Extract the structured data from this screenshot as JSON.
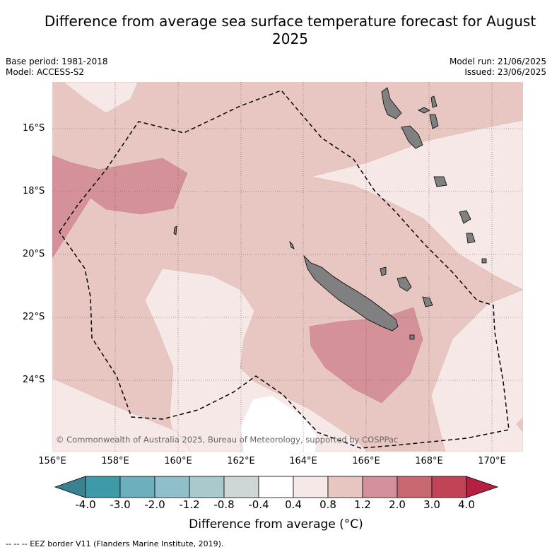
{
  "title": "Difference from average sea surface temperature forecast for August 2025",
  "base_period": "Base period: 1981-2018",
  "model": "Model: ACCESS-S2",
  "model_run": "Model run: 21/06/2025",
  "issued": "Issued: 23/06/2025",
  "copyright": "© Commonwealth of Australia 2025, Bureau of Meteorology, supported by COSPPac",
  "lat_ticks": [
    "16°S",
    "18°S",
    "20°S",
    "22°S",
    "24°S"
  ],
  "lon_ticks": [
    "156°E",
    "158°E",
    "160°E",
    "162°E",
    "164°E",
    "166°E",
    "168°E",
    "170°E"
  ],
  "colorbar": {
    "ticks": [
      "-4.0",
      "-3.0",
      "-2.0",
      "-1.2",
      "-0.8",
      "-0.4",
      "0.4",
      "0.8",
      "1.2",
      "2.0",
      "3.0",
      "4.0"
    ],
    "colors": [
      "#3f9aa8",
      "#6bb0bc",
      "#8fbfc8",
      "#a9cacd",
      "#ced6d7",
      "#ffffff",
      "#f6e8e7",
      "#e7c6c2",
      "#d4909a",
      "#ca6872",
      "#c04456"
    ],
    "under_color": "#3a8291",
    "over_color": "#b52040",
    "title": "Difference from average (°C)"
  },
  "legend_footer": "--  --  -- EEZ border V11 (Flanders Marine Institute, 2019).",
  "map_colors": {
    "base": "#e8c7c2",
    "light": "#f6e8e7",
    "warm": "#d59199",
    "white": "#ffffff",
    "land": "#808080"
  }
}
